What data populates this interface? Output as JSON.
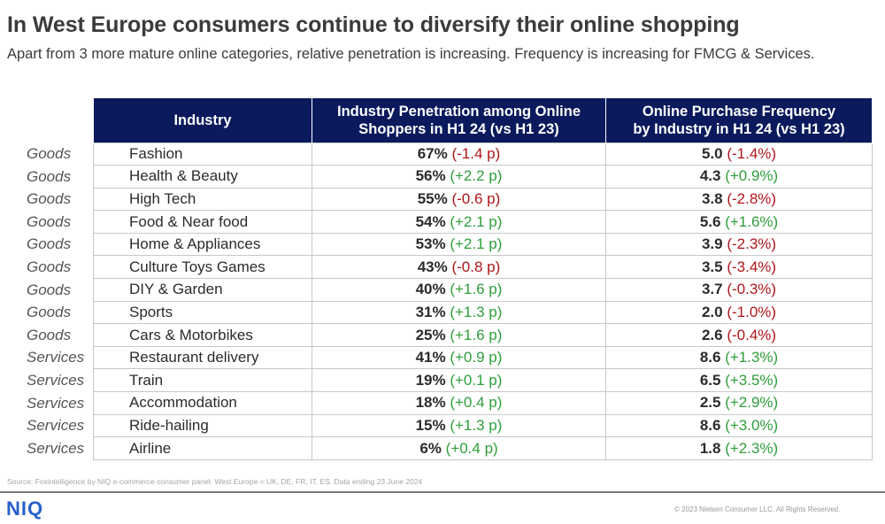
{
  "title": "In West Europe consumers continue to diversify their online shopping",
  "subtitle": "Apart from 3 more mature online categories, relative penetration is increasing. Frequency is increasing for FMCG & Services.",
  "headers": {
    "industry": "Industry",
    "penetration_line1": "Industry Penetration among Online",
    "penetration_line2": "Shoppers in H1 24 (vs H1 23)",
    "frequency_line1": "Online Purchase Frequency",
    "frequency_line2": "by Industry in H1 24 (vs H1 23)"
  },
  "colors": {
    "header_bg": "#0a1a5c",
    "negative": "#b0151a",
    "positive": "#2e9e3a",
    "logo": "#2860c8"
  },
  "rows": [
    {
      "category": "Goods",
      "industry": "Fashion",
      "pen": "67%",
      "pen_change": "(-1.4 p)",
      "pen_dir": "neg",
      "freq": "5.0",
      "freq_change": "(-1.4%)",
      "freq_dir": "neg"
    },
    {
      "category": "Goods",
      "industry": "Health & Beauty",
      "pen": "56%",
      "pen_change": "(+2.2 p)",
      "pen_dir": "pos",
      "freq": "4.3",
      "freq_change": "(+0.9%)",
      "freq_dir": "pos"
    },
    {
      "category": "Goods",
      "industry": "High Tech",
      "pen": "55%",
      "pen_change": "(-0.6 p)",
      "pen_dir": "neg",
      "freq": "3.8",
      "freq_change": "(-2.8%)",
      "freq_dir": "neg"
    },
    {
      "category": "Goods",
      "industry": "Food & Near food",
      "pen": "54%",
      "pen_change": "(+2.1 p)",
      "pen_dir": "pos",
      "freq": "5.6",
      "freq_change": "(+1.6%)",
      "freq_dir": "pos"
    },
    {
      "category": "Goods",
      "industry": "Home & Appliances",
      "pen": "53%",
      "pen_change": "(+2.1 p)",
      "pen_dir": "pos",
      "freq": "3.9",
      "freq_change": "(-2.3%)",
      "freq_dir": "neg"
    },
    {
      "category": "Goods",
      "industry": "Culture Toys Games",
      "pen": "43%",
      "pen_change": "(-0.8 p)",
      "pen_dir": "neg",
      "freq": "3.5",
      "freq_change": "(-3.4%)",
      "freq_dir": "neg"
    },
    {
      "category": "Goods",
      "industry": "DIY & Garden",
      "pen": "40%",
      "pen_change": "(+1.6 p)",
      "pen_dir": "pos",
      "freq": "3.7",
      "freq_change": "(-0.3%)",
      "freq_dir": "neg"
    },
    {
      "category": "Goods",
      "industry": "Sports",
      "pen": "31%",
      "pen_change": "(+1.3 p)",
      "pen_dir": "pos",
      "freq": "2.0",
      "freq_change": "(-1.0%)",
      "freq_dir": "neg"
    },
    {
      "category": "Goods",
      "industry": "Cars & Motorbikes",
      "pen": "25%",
      "pen_change": "(+1.6 p)",
      "pen_dir": "pos",
      "freq": "2.6",
      "freq_change": "(-0.4%)",
      "freq_dir": "neg"
    },
    {
      "category": "Services",
      "industry": "Restaurant delivery",
      "pen": "41%",
      "pen_change": "(+0.9 p)",
      "pen_dir": "pos",
      "freq": "8.6",
      "freq_change": "(+1.3%)",
      "freq_dir": "pos"
    },
    {
      "category": "Services",
      "industry": "Train",
      "pen": "19%",
      "pen_change": "(+0.1 p)",
      "pen_dir": "pos",
      "freq": "6.5",
      "freq_change": "(+3.5%)",
      "freq_dir": "pos"
    },
    {
      "category": "Services",
      "industry": "Accommodation",
      "pen": "18%",
      "pen_change": "(+0.4 p)",
      "pen_dir": "pos",
      "freq": "2.5",
      "freq_change": "(+2.9%)",
      "freq_dir": "pos"
    },
    {
      "category": "Services",
      "industry": "Ride-hailing",
      "pen": "15%",
      "pen_change": "(+1.3 p)",
      "pen_dir": "pos",
      "freq": "8.6",
      "freq_change": "(+3.0%)",
      "freq_dir": "pos"
    },
    {
      "category": "Services",
      "industry": "Airline",
      "pen": "6%",
      "pen_change": "(+0.4 p)",
      "pen_dir": "pos",
      "freq": "1.8",
      "freq_change": "(+2.3%)",
      "freq_dir": "pos"
    }
  ],
  "source": "Source: Foxintelligence by NIQ e-commerce consumer panel. West Europe = UK, DE, FR, IT, ES. Data ending 23 June 2024",
  "logo": "NIQ",
  "copyright": "© 2023 Nielsen Consumer LLC. All Rights Reserved."
}
